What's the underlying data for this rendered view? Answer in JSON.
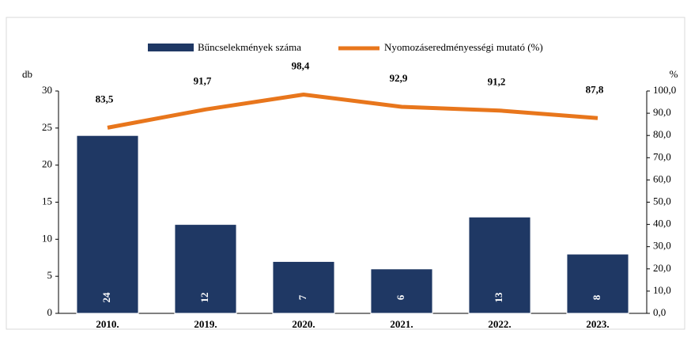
{
  "chart_data": {
    "type": "bar_line",
    "categories": [
      "2010.",
      "2019.",
      "2020.",
      "2021.",
      "2022.",
      "2023."
    ],
    "series": [
      {
        "name": "Bűncselekmények száma",
        "color": "#1f3864",
        "type": "bar",
        "values": [
          24,
          12,
          7,
          6,
          13,
          8
        ]
      },
      {
        "name": "Nyomozáseredményességi mutató (%)",
        "color": "#e8761c",
        "type": "line",
        "axis": "y2",
        "values": [
          83.5,
          91.7,
          98.4,
          92.9,
          91.2,
          87.8
        ],
        "value_labels": [
          "83,5",
          "91,7",
          "98,4",
          "92,9",
          "91,2",
          "87,8"
        ]
      }
    ],
    "ylabel": "db",
    "y2label": "%",
    "ylim": [
      0,
      30
    ],
    "yticks": [
      0,
      5,
      10,
      15,
      20,
      25,
      30
    ],
    "y2lim": [
      0,
      100
    ],
    "y2ticks": [
      {
        "value": 0,
        "label": "0,0"
      },
      {
        "value": 10,
        "label": "10,0"
      },
      {
        "value": 20,
        "label": "20,0"
      },
      {
        "value": 30,
        "label": "30,0"
      },
      {
        "value": 40,
        "label": "40,0"
      },
      {
        "value": 50,
        "label": "50,0"
      },
      {
        "value": 60,
        "label": "60,0"
      },
      {
        "value": 70,
        "label": "70,0"
      },
      {
        "value": 80,
        "label": "80,0"
      },
      {
        "value": 90,
        "label": "90,0"
      },
      {
        "value": 100,
        "label": "100,0"
      }
    ],
    "legend": "top"
  }
}
